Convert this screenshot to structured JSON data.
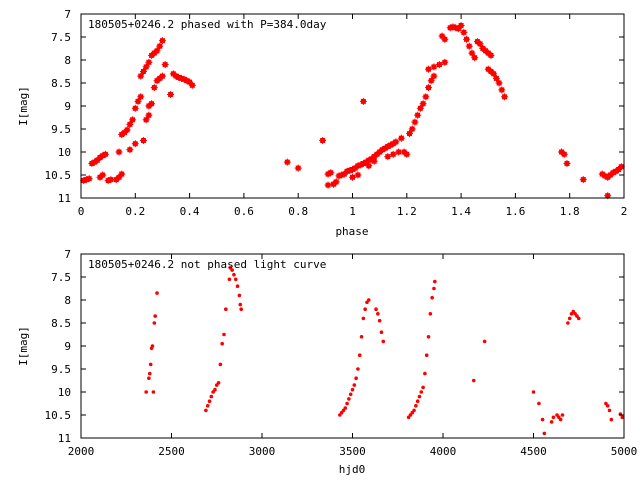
{
  "chart_data": [
    {
      "type": "scatter",
      "title": "180505+0246.2 phased with P=384.0day",
      "xlabel": "phase",
      "ylabel": "I[mag]",
      "xlim": [
        0,
        2
      ],
      "ylim": [
        11,
        7
      ],
      "y_inverted": true,
      "xticks": [
        "0",
        "0.2",
        "0.4",
        "0.6",
        "0.8",
        "1",
        "1.2",
        "1.4",
        "1.6",
        "1.8",
        "2"
      ],
      "xtick_values": [
        0,
        0.2,
        0.4,
        0.6,
        0.8,
        1.0,
        1.2,
        1.4,
        1.6,
        1.8,
        2.0
      ],
      "yticks": [
        "7",
        "7.5",
        "8",
        "8.5",
        "9",
        "9.5",
        "10",
        "10.5",
        "11"
      ],
      "ytick_values": [
        7,
        7.5,
        8,
        8.5,
        9,
        9.5,
        10,
        10.5,
        11
      ],
      "marker_color": "#ff0000",
      "marker": "star",
      "series": [
        {
          "points": [
            [
              0.01,
              10.62
            ],
            [
              0.02,
              10.6
            ],
            [
              0.03,
              10.58
            ],
            [
              0.04,
              10.25
            ],
            [
              0.05,
              10.22
            ],
            [
              0.06,
              10.18
            ],
            [
              0.07,
              10.12
            ],
            [
              0.08,
              10.08
            ],
            [
              0.09,
              10.05
            ],
            [
              0.08,
              10.5
            ],
            [
              0.07,
              10.55
            ],
            [
              0.1,
              10.62
            ],
            [
              0.11,
              10.6
            ],
            [
              0.13,
              10.6
            ],
            [
              0.14,
              10.55
            ],
            [
              0.15,
              10.48
            ],
            [
              0.14,
              10.0
            ],
            [
              0.15,
              9.62
            ],
            [
              0.16,
              9.58
            ],
            [
              0.17,
              9.52
            ],
            [
              0.18,
              9.4
            ],
            [
              0.19,
              9.3
            ],
            [
              0.18,
              9.95
            ],
            [
              0.2,
              9.82
            ],
            [
              0.2,
              9.05
            ],
            [
              0.21,
              8.9
            ],
            [
              0.22,
              8.8
            ],
            [
              0.22,
              8.35
            ],
            [
              0.23,
              8.25
            ],
            [
              0.24,
              8.15
            ],
            [
              0.23,
              9.75
            ],
            [
              0.24,
              9.3
            ],
            [
              0.25,
              9.2
            ],
            [
              0.25,
              9.0
            ],
            [
              0.26,
              8.95
            ],
            [
              0.25,
              8.05
            ],
            [
              0.26,
              7.9
            ],
            [
              0.27,
              7.85
            ],
            [
              0.28,
              7.8
            ],
            [
              0.29,
              7.7
            ],
            [
              0.3,
              7.58
            ],
            [
              0.27,
              8.6
            ],
            [
              0.28,
              8.45
            ],
            [
              0.29,
              8.4
            ],
            [
              0.3,
              8.35
            ],
            [
              0.31,
              8.1
            ],
            [
              0.33,
              8.75
            ],
            [
              0.34,
              8.3
            ],
            [
              0.35,
              8.35
            ],
            [
              0.36,
              8.38
            ],
            [
              0.37,
              8.4
            ],
            [
              0.38,
              8.42
            ],
            [
              0.39,
              8.45
            ],
            [
              0.4,
              8.48
            ],
            [
              0.41,
              8.55
            ],
            [
              0.76,
              10.22
            ],
            [
              0.8,
              10.35
            ],
            [
              0.89,
              9.75
            ],
            [
              0.91,
              10.48
            ],
            [
              0.92,
              10.45
            ],
            [
              0.91,
              10.72
            ],
            [
              0.93,
              10.7
            ],
            [
              0.94,
              10.65
            ],
            [
              0.95,
              10.52
            ],
            [
              0.96,
              10.5
            ],
            [
              0.97,
              10.48
            ],
            [
              0.98,
              10.42
            ],
            [
              0.99,
              10.4
            ],
            [
              1.0,
              10.38
            ],
            [
              1.01,
              10.35
            ],
            [
              1.02,
              10.3
            ],
            [
              1.03,
              10.28
            ],
            [
              1.04,
              10.25
            ],
            [
              1.05,
              10.22
            ],
            [
              1.06,
              10.18
            ],
            [
              1.07,
              10.15
            ],
            [
              1.08,
              10.1
            ],
            [
              1.09,
              10.05
            ],
            [
              1.1,
              10.0
            ],
            [
              1.11,
              9.95
            ],
            [
              1.12,
              9.92
            ],
            [
              1.13,
              9.88
            ],
            [
              1.14,
              9.85
            ],
            [
              1.15,
              9.82
            ],
            [
              1.16,
              9.78
            ],
            [
              1.04,
              8.9
            ],
            [
              1.0,
              10.55
            ],
            [
              1.02,
              10.5
            ],
            [
              1.06,
              10.3
            ],
            [
              1.08,
              10.2
            ],
            [
              1.13,
              10.1
            ],
            [
              1.15,
              10.05
            ],
            [
              1.17,
              10.0
            ],
            [
              1.18,
              9.7
            ],
            [
              1.19,
              10.0
            ],
            [
              1.2,
              10.05
            ],
            [
              1.21,
              9.6
            ],
            [
              1.22,
              9.5
            ],
            [
              1.23,
              9.35
            ],
            [
              1.24,
              9.2
            ],
            [
              1.25,
              9.05
            ],
            [
              1.26,
              8.95
            ],
            [
              1.27,
              8.8
            ],
            [
              1.28,
              8.6
            ],
            [
              1.29,
              8.45
            ],
            [
              1.3,
              8.35
            ],
            [
              1.28,
              8.2
            ],
            [
              1.3,
              8.15
            ],
            [
              1.32,
              8.1
            ],
            [
              1.34,
              8.05
            ],
            [
              1.33,
              7.48
            ],
            [
              1.34,
              7.55
            ],
            [
              1.36,
              7.3
            ],
            [
              1.37,
              7.28
            ],
            [
              1.38,
              7.3
            ],
            [
              1.39,
              7.32
            ],
            [
              1.4,
              7.25
            ],
            [
              1.41,
              7.4
            ],
            [
              1.42,
              7.55
            ],
            [
              1.43,
              7.7
            ],
            [
              1.44,
              7.85
            ],
            [
              1.45,
              7.95
            ],
            [
              1.46,
              7.6
            ],
            [
              1.47,
              7.65
            ],
            [
              1.48,
              7.75
            ],
            [
              1.49,
              7.8
            ],
            [
              1.5,
              7.85
            ],
            [
              1.51,
              7.9
            ],
            [
              1.5,
              8.2
            ],
            [
              1.51,
              8.25
            ],
            [
              1.52,
              8.3
            ],
            [
              1.53,
              8.4
            ],
            [
              1.54,
              8.5
            ],
            [
              1.55,
              8.65
            ],
            [
              1.56,
              8.8
            ],
            [
              1.77,
              10.0
            ],
            [
              1.78,
              10.05
            ],
            [
              1.79,
              10.25
            ],
            [
              1.85,
              10.6
            ],
            [
              1.92,
              10.48
            ],
            [
              1.93,
              10.52
            ],
            [
              1.94,
              10.55
            ],
            [
              1.95,
              10.5
            ],
            [
              1.96,
              10.45
            ],
            [
              1.97,
              10.42
            ],
            [
              1.98,
              10.38
            ],
            [
              1.99,
              10.32
            ],
            [
              1.94,
              10.95
            ]
          ]
        }
      ]
    },
    {
      "type": "scatter",
      "title": "180505+0246.2 not phased light curve",
      "xlabel": "hjd0",
      "ylabel": "I[mag]",
      "xlim": [
        2000,
        5000
      ],
      "ylim": [
        11,
        7
      ],
      "y_inverted": true,
      "xticks": [
        "2000",
        "2500",
        "3000",
        "3500",
        "4000",
        "4500",
        "5000"
      ],
      "xtick_values": [
        2000,
        2500,
        3000,
        3500,
        4000,
        4500,
        5000
      ],
      "yticks": [
        "7",
        "7.5",
        "8",
        "8.5",
        "9",
        "9.5",
        "10",
        "10.5",
        "11"
      ],
      "ytick_values": [
        7,
        7.5,
        8,
        8.5,
        9,
        9.5,
        10,
        10.5,
        11
      ],
      "marker_color": "#ff0000",
      "marker": "dot",
      "series": [
        {
          "points": [
            [
              2360,
              10.0
            ],
            [
              2375,
              9.7
            ],
            [
              2380,
              9.6
            ],
            [
              2385,
              9.4
            ],
            [
              2390,
              9.05
            ],
            [
              2395,
              9.0
            ],
            [
              2400,
              10.0
            ],
            [
              2405,
              8.5
            ],
            [
              2410,
              8.35
            ],
            [
              2420,
              7.85
            ],
            [
              2690,
              10.4
            ],
            [
              2700,
              10.3
            ],
            [
              2710,
              10.2
            ],
            [
              2720,
              10.1
            ],
            [
              2730,
              10.0
            ],
            [
              2740,
              9.95
            ],
            [
              2750,
              9.85
            ],
            [
              2760,
              9.8
            ],
            [
              2770,
              9.4
            ],
            [
              2780,
              8.95
            ],
            [
              2790,
              8.75
            ],
            [
              2800,
              8.2
            ],
            [
              2820,
              7.55
            ],
            [
              2825,
              7.3
            ],
            [
              2835,
              7.35
            ],
            [
              2845,
              7.45
            ],
            [
              2855,
              7.55
            ],
            [
              2865,
              7.7
            ],
            [
              2875,
              7.9
            ],
            [
              2880,
              8.1
            ],
            [
              2885,
              8.2
            ],
            [
              3430,
              10.5
            ],
            [
              3440,
              10.45
            ],
            [
              3450,
              10.4
            ],
            [
              3460,
              10.35
            ],
            [
              3470,
              10.25
            ],
            [
              3480,
              10.15
            ],
            [
              3490,
              10.05
            ],
            [
              3500,
              9.95
            ],
            [
              3510,
              9.85
            ],
            [
              3520,
              9.7
            ],
            [
              3530,
              9.5
            ],
            [
              3540,
              9.2
            ],
            [
              3550,
              8.8
            ],
            [
              3560,
              8.4
            ],
            [
              3570,
              8.2
            ],
            [
              3580,
              8.05
            ],
            [
              3590,
              8.0
            ],
            [
              3630,
              8.2
            ],
            [
              3640,
              8.3
            ],
            [
              3650,
              8.45
            ],
            [
              3660,
              8.7
            ],
            [
              3670,
              8.9
            ],
            [
              3810,
              10.55
            ],
            [
              3820,
              10.5
            ],
            [
              3830,
              10.45
            ],
            [
              3840,
              10.4
            ],
            [
              3850,
              10.3
            ],
            [
              3860,
              10.2
            ],
            [
              3870,
              10.1
            ],
            [
              3880,
              10.0
            ],
            [
              3890,
              9.9
            ],
            [
              3900,
              9.6
            ],
            [
              3910,
              9.2
            ],
            [
              3920,
              8.8
            ],
            [
              3930,
              8.3
            ],
            [
              3940,
              7.95
            ],
            [
              3950,
              7.75
            ],
            [
              3955,
              7.6
            ],
            [
              4170,
              9.75
            ],
            [
              4230,
              8.9
            ],
            [
              4500,
              10.0
            ],
            [
              4530,
              10.25
            ],
            [
              4550,
              10.6
            ],
            [
              4560,
              10.9
            ],
            [
              4600,
              10.65
            ],
            [
              4610,
              10.55
            ],
            [
              4630,
              10.5
            ],
            [
              4640,
              10.55
            ],
            [
              4650,
              10.6
            ],
            [
              4660,
              10.5
            ],
            [
              4690,
              8.5
            ],
            [
              4700,
              8.4
            ],
            [
              4710,
              8.3
            ],
            [
              4720,
              8.25
            ],
            [
              4730,
              8.3
            ],
            [
              4740,
              8.35
            ],
            [
              4750,
              8.4
            ],
            [
              4900,
              10.25
            ],
            [
              4910,
              10.3
            ],
            [
              4920,
              10.4
            ],
            [
              4930,
              10.6
            ],
            [
              4980,
              10.48
            ],
            [
              4990,
              10.55
            ]
          ]
        }
      ]
    }
  ]
}
